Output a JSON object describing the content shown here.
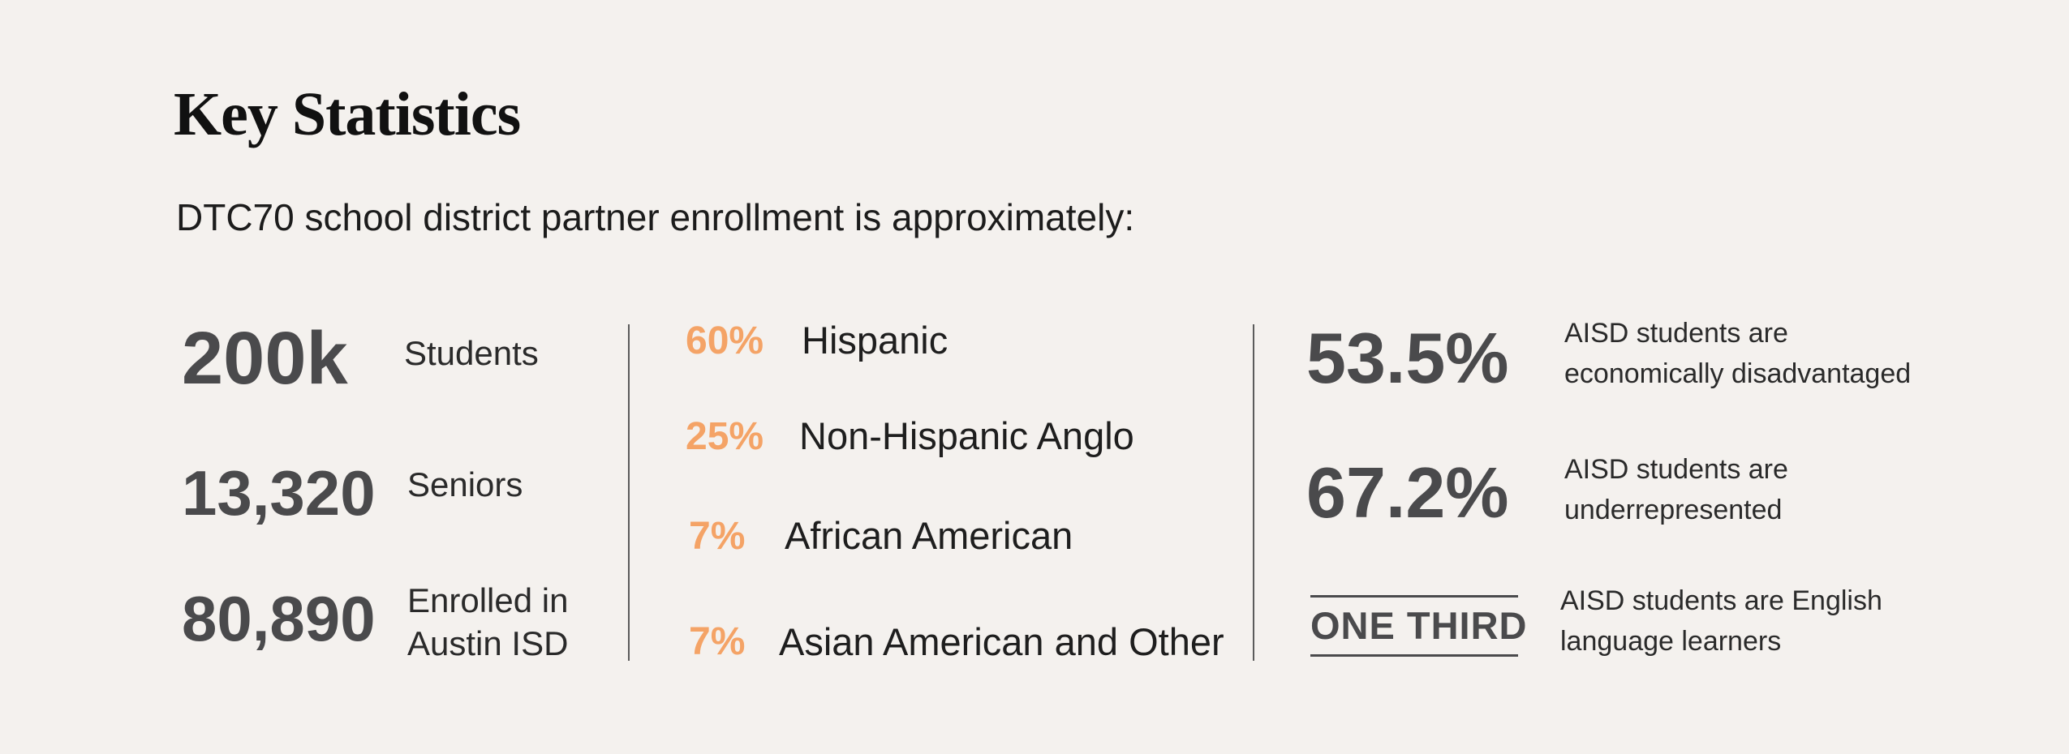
{
  "title": "Key Statistics",
  "subtitle": "DTC70 school district partner enrollment is approximately:",
  "colors": {
    "background": "#f4f1ee",
    "number": "#4a4a4c",
    "accent_orange": "#f4a366",
    "divider": "#5b5b5b"
  },
  "enrollment": [
    {
      "value": "200k",
      "label": "Students"
    },
    {
      "value": "13,320",
      "label": "Seniors"
    },
    {
      "value": "80,890",
      "label_line1": "Enrolled in",
      "label_line2": "Austin ISD"
    }
  ],
  "ethnicity": [
    {
      "percent": "60%",
      "label": "Hispanic"
    },
    {
      "percent": "25%",
      "label": "Non-Hispanic Anglo"
    },
    {
      "percent": "7%",
      "label": "African American"
    },
    {
      "percent": "7%",
      "label": "Asian American and Other"
    }
  ],
  "aisd": [
    {
      "value": "53.5%",
      "line1": "AISD students are",
      "line2": "economically disadvantaged"
    },
    {
      "value": "67.2%",
      "line1": "AISD students are",
      "line2": "underrepresented"
    },
    {
      "value": "ONE THIRD",
      "line1": "AISD students are English",
      "line2": "language learners"
    }
  ]
}
